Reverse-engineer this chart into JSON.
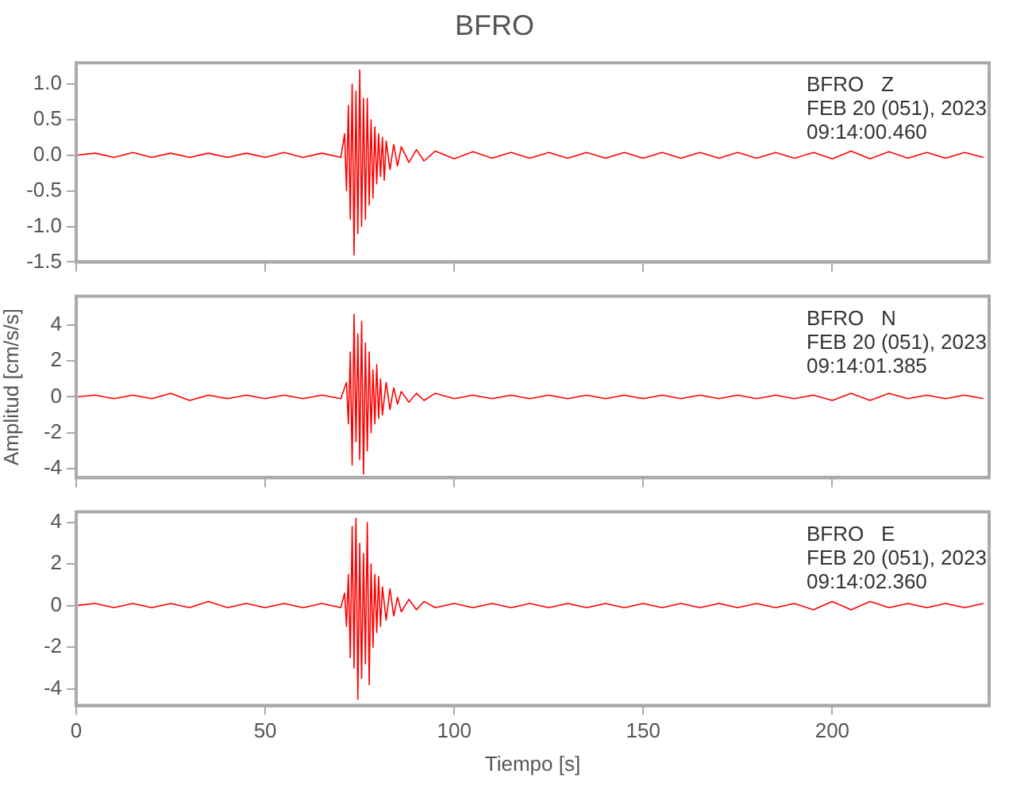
{
  "chart_data": [
    {
      "type": "line",
      "title": "BFRO",
      "xlim": [
        0,
        241.5
      ],
      "xticks": [
        0,
        50,
        100,
        150,
        200
      ],
      "ylim": [
        -1.5,
        1.3
      ],
      "yticks": [
        {
          "value": -1.5,
          "label": "-1.5"
        },
        {
          "value": -1,
          "label": "-1.0"
        },
        {
          "value": -0.5,
          "label": "-0.5"
        },
        {
          "value": 0,
          "label": "0.0"
        },
        {
          "value": 0.5,
          "label": "0.5"
        },
        {
          "value": 1,
          "label": "1.0"
        }
      ],
      "tick_labels": "y",
      "grid": false,
      "legend": false,
      "marker": "none",
      "line_style": "solid",
      "annotations": [
        "BFRO   Z",
        "FEB 20 (051), 2023",
        "09:14:00.460"
      ],
      "series": [
        {
          "color": "#ff0000",
          "x": [
            0,
            5,
            10,
            15,
            20,
            25,
            30,
            35,
            40,
            45,
            50,
            55,
            60,
            65,
            70,
            71,
            71.5,
            72,
            72.5,
            73,
            73.5,
            74,
            74.5,
            75,
            75.5,
            76,
            76.5,
            77,
            77.5,
            78,
            78.5,
            79,
            79.5,
            80,
            80.5,
            81,
            81.5,
            82,
            83,
            84,
            85,
            86,
            88,
            90,
            92,
            95,
            100,
            105,
            110,
            115,
            120,
            125,
            130,
            135,
            140,
            145,
            150,
            155,
            160,
            165,
            170,
            175,
            180,
            185,
            190,
            195,
            200,
            205,
            210,
            215,
            220,
            225,
            230,
            235,
            240
          ],
          "values": [
            0,
            0.03,
            -0.03,
            0.04,
            -0.03,
            0.03,
            -0.03,
            0.03,
            -0.03,
            0.03,
            -0.03,
            0.04,
            -0.03,
            0.03,
            -0.03,
            0.3,
            -0.5,
            0.7,
            -0.9,
            1.0,
            -1.4,
            0.9,
            -1.1,
            1.2,
            -1.0,
            0.8,
            -0.9,
            0.8,
            -0.7,
            0.5,
            -0.6,
            0.4,
            -0.4,
            0.3,
            -0.3,
            0.25,
            -0.35,
            0.2,
            -0.2,
            0.15,
            -0.15,
            0.12,
            -0.1,
            0.08,
            -0.08,
            0.06,
            -0.05,
            0.05,
            -0.04,
            0.04,
            -0.04,
            0.04,
            -0.04,
            0.04,
            -0.04,
            0.04,
            -0.04,
            0.04,
            -0.04,
            0.04,
            -0.04,
            0.04,
            -0.04,
            0.04,
            -0.04,
            0.04,
            -0.05,
            0.06,
            -0.05,
            0.05,
            -0.04,
            0.04,
            -0.04,
            0.04,
            -0.03
          ]
        }
      ]
    },
    {
      "type": "line",
      "ylabel": "Amplitud [cm/s/s]",
      "xlim": [
        0,
        241.5
      ],
      "xticks": [
        0,
        50,
        100,
        150,
        200
      ],
      "ylim": [
        -4.5,
        5.6
      ],
      "yticks": [
        -4,
        -2,
        0,
        2,
        4
      ],
      "tick_labels": "y",
      "grid": false,
      "legend": false,
      "marker": "none",
      "line_style": "solid",
      "annotations": [
        "BFRO   N",
        "FEB 20 (051), 2023",
        "09:14:01.385"
      ],
      "series": [
        {
          "color": "#ff0000",
          "x": [
            0,
            5,
            10,
            15,
            20,
            25,
            30,
            35,
            40,
            45,
            50,
            55,
            60,
            65,
            70,
            71.5,
            72,
            72.5,
            73,
            73.5,
            74,
            74.5,
            75,
            75.5,
            76,
            76.5,
            77,
            77.5,
            78,
            78.5,
            79,
            79.5,
            80,
            80.5,
            81,
            82,
            83,
            84,
            85,
            86,
            88,
            90,
            92,
            95,
            100,
            105,
            110,
            115,
            120,
            125,
            130,
            135,
            140,
            145,
            150,
            155,
            160,
            165,
            170,
            175,
            180,
            185,
            190,
            195,
            200,
            205,
            210,
            215,
            220,
            225,
            230,
            235,
            240
          ],
          "values": [
            0,
            0.1,
            -0.1,
            0.1,
            -0.1,
            0.2,
            -0.2,
            0.1,
            -0.1,
            0.1,
            -0.1,
            0.1,
            -0.1,
            0.1,
            -0.1,
            0.8,
            -1.5,
            2.5,
            -3.8,
            4.6,
            -2.5,
            3.5,
            -3.5,
            4.2,
            -4.3,
            3.0,
            -3.0,
            2.5,
            -2.0,
            1.5,
            -1.5,
            1.8,
            -1.2,
            1.0,
            -1.0,
            0.8,
            -0.7,
            0.5,
            -0.4,
            0.3,
            -0.3,
            0.2,
            -0.2,
            0.2,
            -0.1,
            0.1,
            -0.1,
            0.1,
            -0.1,
            0.1,
            -0.1,
            0.1,
            -0.1,
            0.1,
            -0.1,
            0.1,
            -0.1,
            0.1,
            -0.1,
            0.1,
            -0.1,
            0.1,
            -0.1,
            0.1,
            -0.2,
            0.2,
            -0.2,
            0.2,
            -0.1,
            0.1,
            -0.1,
            0.1,
            -0.1
          ]
        }
      ]
    },
    {
      "type": "line",
      "xlabel": "Tiempo [s]",
      "xlim": [
        0,
        241.5
      ],
      "xticks": [
        0,
        50,
        100,
        150,
        200
      ],
      "ylim": [
        -4.8,
        4.5
      ],
      "yticks": [
        -4,
        -2,
        0,
        2,
        4
      ],
      "grid": false,
      "legend": false,
      "marker": "none",
      "line_style": "solid",
      "annotations": [
        "BFRO   E",
        "FEB 20 (051), 2023",
        "09:14:02.360"
      ],
      "series": [
        {
          "color": "#ff0000",
          "x": [
            0,
            5,
            10,
            15,
            20,
            25,
            30,
            35,
            40,
            45,
            50,
            55,
            60,
            65,
            70,
            71,
            71.5,
            72,
            72.5,
            73,
            73.5,
            74,
            74.5,
            75,
            75.5,
            76,
            76.5,
            77,
            77.5,
            78,
            78.5,
            79,
            79.5,
            80,
            80.5,
            81,
            82,
            83,
            84,
            85,
            86,
            88,
            90,
            92,
            95,
            100,
            105,
            110,
            115,
            120,
            125,
            130,
            135,
            140,
            145,
            150,
            155,
            160,
            165,
            170,
            175,
            180,
            185,
            190,
            195,
            200,
            205,
            210,
            215,
            220,
            225,
            230,
            235,
            240
          ],
          "values": [
            0,
            0.1,
            -0.1,
            0.1,
            -0.1,
            0.1,
            -0.1,
            0.2,
            -0.1,
            0.1,
            -0.1,
            0.1,
            -0.1,
            0.1,
            -0.1,
            0.6,
            -1.0,
            1.5,
            -2.5,
            3.8,
            -3.0,
            4.2,
            -4.5,
            3.0,
            -3.5,
            2.5,
            -2.8,
            4.0,
            -3.8,
            2.0,
            -2.0,
            1.5,
            -1.3,
            1.4,
            -1.0,
            0.9,
            -0.7,
            0.8,
            -0.5,
            0.4,
            -0.3,
            0.3,
            -0.2,
            0.2,
            -0.1,
            0.1,
            -0.1,
            0.1,
            -0.1,
            0.1,
            -0.1,
            0.1,
            -0.1,
            0.1,
            -0.1,
            0.1,
            -0.1,
            0.1,
            -0.1,
            0.1,
            -0.1,
            0.1,
            -0.1,
            0.1,
            -0.2,
            0.2,
            -0.2,
            0.2,
            -0.1,
            0.1,
            -0.1,
            0.1,
            -0.1,
            0.1
          ]
        }
      ]
    }
  ]
}
